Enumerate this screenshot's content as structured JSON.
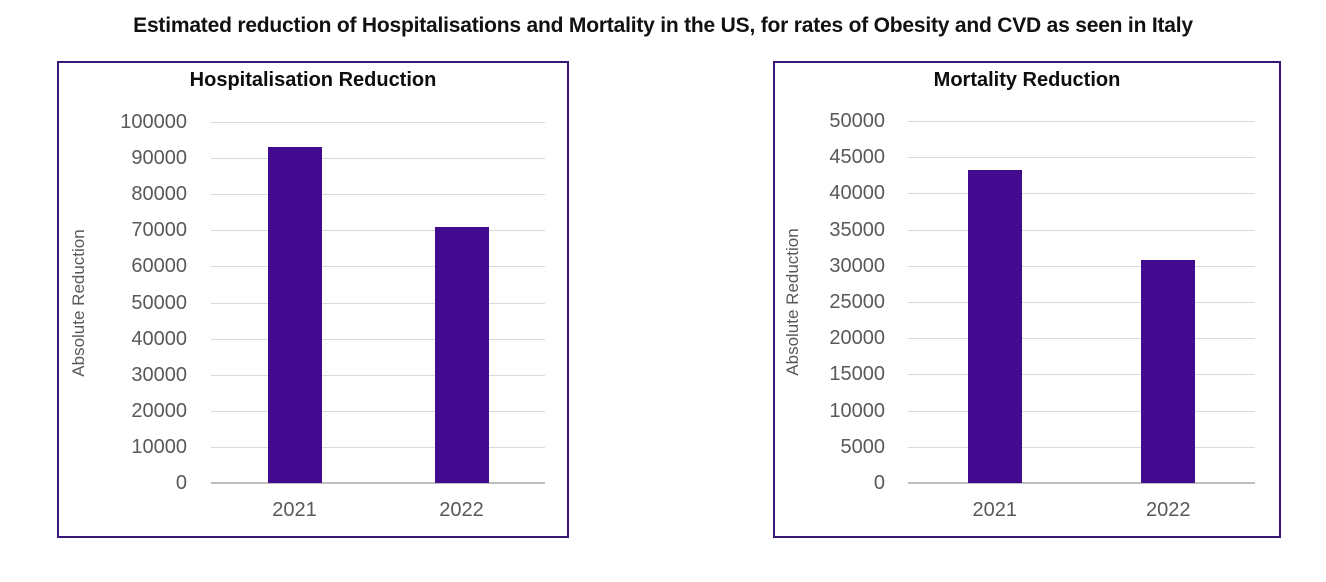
{
  "page_title": "Estimated reduction of Hospitalisations and Mortality in the US, for rates of Obesity and CVD as seen in Italy",
  "colors": {
    "bar_fill": "#410a8f",
    "box_border": "#391778",
    "gridline": "#d9d9d9",
    "axis_line": "#bfbfbf",
    "tick_label": "#595959",
    "chart_title": "#0d0d0d"
  },
  "chart_data": [
    {
      "type": "bar",
      "title": "Hospitalisation Reduction",
      "ylabel": "Absolute Reduction",
      "xlabel": "",
      "categories": [
        "2021",
        "2022"
      ],
      "values": [
        93000,
        71000
      ],
      "ylim": [
        0,
        100000
      ],
      "ytick_step": 10000,
      "ytick_labels": [
        "0",
        "10000",
        "20000",
        "30000",
        "40000",
        "50000",
        "60000",
        "70000",
        "80000",
        "90000",
        "100000"
      ],
      "grid": true,
      "legend_position": "none"
    },
    {
      "type": "bar",
      "title": "Mortality Reduction",
      "ylabel": "Absolute Reduction",
      "xlabel": "",
      "categories": [
        "2021",
        "2022"
      ],
      "values": [
        43300,
        30800
      ],
      "ylim": [
        0,
        50000
      ],
      "ytick_step": 5000,
      "ytick_labels": [
        "0",
        "5000",
        "10000",
        "15000",
        "20000",
        "25000",
        "30000",
        "35000",
        "40000",
        "45000",
        "50000"
      ],
      "grid": true,
      "legend_position": "none"
    }
  ]
}
